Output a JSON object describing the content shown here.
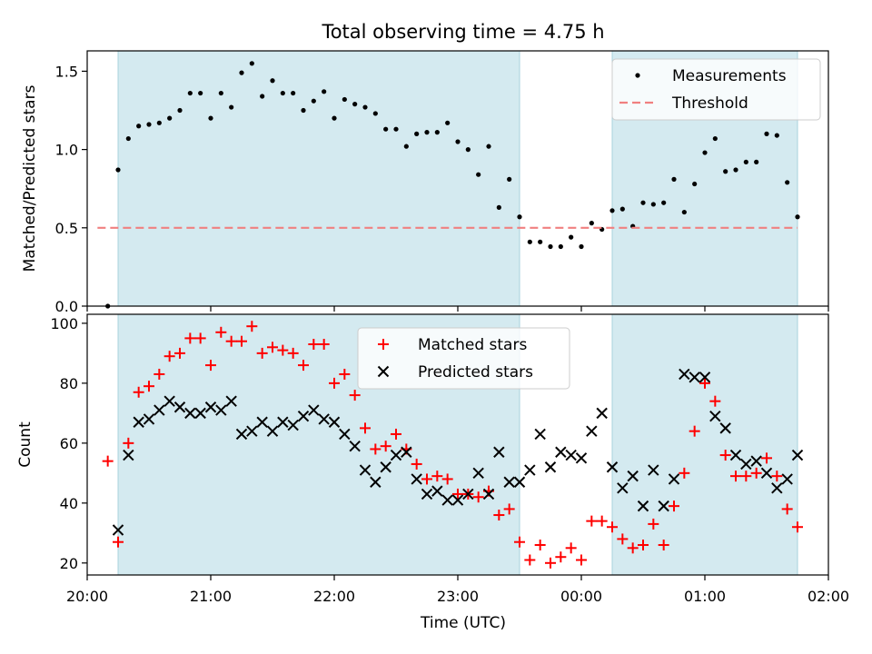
{
  "figure_title": "Total observing time = 4.75 h",
  "x_axis_label": "Time (UTC)",
  "x_tick_labels": [
    "20:00",
    "21:00",
    "22:00",
    "23:00",
    "00:00",
    "01:00",
    "02:00"
  ],
  "chart_data": [
    {
      "type": "scatter",
      "title": "Total observing time = 4.75 h",
      "xlabel": "",
      "ylabel": "Matched/Predicted stars",
      "xlim": [
        "20:00",
        "02:00"
      ],
      "ylim": [
        0,
        1.63
      ],
      "yticks": [
        "0.0",
        "0.5",
        "1.0",
        "1.5"
      ],
      "shaded_intervals": [
        [
          "20:15",
          "23:30"
        ],
        [
          "00:15",
          "01:45"
        ]
      ],
      "shade_color": "#d4eaf0",
      "legend": "top-right",
      "series": [
        {
          "name": "Measurements",
          "marker": "dot",
          "color": "#000000",
          "points": [
            [
              "20:10",
              0.0
            ],
            [
              "20:15",
              0.87
            ],
            [
              "20:20",
              1.07
            ],
            [
              "20:25",
              1.15
            ],
            [
              "20:30",
              1.16
            ],
            [
              "20:35",
              1.17
            ],
            [
              "20:40",
              1.2
            ],
            [
              "20:45",
              1.25
            ],
            [
              "20:50",
              1.36
            ],
            [
              "20:55",
              1.36
            ],
            [
              "21:00",
              1.2
            ],
            [
              "21:05",
              1.36
            ],
            [
              "21:10",
              1.27
            ],
            [
              "21:15",
              1.49
            ],
            [
              "21:20",
              1.55
            ],
            [
              "21:25",
              1.34
            ],
            [
              "21:30",
              1.44
            ],
            [
              "21:35",
              1.36
            ],
            [
              "21:40",
              1.36
            ],
            [
              "21:45",
              1.25
            ],
            [
              "21:50",
              1.31
            ],
            [
              "21:55",
              1.37
            ],
            [
              "22:00",
              1.2
            ],
            [
              "22:05",
              1.32
            ],
            [
              "22:10",
              1.29
            ],
            [
              "22:15",
              1.27
            ],
            [
              "22:20",
              1.23
            ],
            [
              "22:25",
              1.13
            ],
            [
              "22:30",
              1.13
            ],
            [
              "22:35",
              1.02
            ],
            [
              "22:40",
              1.1
            ],
            [
              "22:45",
              1.11
            ],
            [
              "22:50",
              1.11
            ],
            [
              "22:55",
              1.17
            ],
            [
              "23:00",
              1.05
            ],
            [
              "23:05",
              1.0
            ],
            [
              "23:10",
              0.84
            ],
            [
              "23:15",
              1.02
            ],
            [
              "23:20",
              0.63
            ],
            [
              "23:25",
              0.81
            ],
            [
              "23:30",
              0.57
            ],
            [
              "23:35",
              0.41
            ],
            [
              "23:40",
              0.41
            ],
            [
              "23:45",
              0.38
            ],
            [
              "23:50",
              0.38
            ],
            [
              "23:55",
              0.44
            ],
            [
              "00:00",
              0.38
            ],
            [
              "00:05",
              0.53
            ],
            [
              "00:10",
              0.49
            ],
            [
              "00:15",
              0.61
            ],
            [
              "00:20",
              0.62
            ],
            [
              "00:25",
              0.51
            ],
            [
              "00:30",
              0.66
            ],
            [
              "00:35",
              0.65
            ],
            [
              "00:40",
              0.66
            ],
            [
              "00:45",
              0.81
            ],
            [
              "00:50",
              0.6
            ],
            [
              "00:55",
              0.78
            ],
            [
              "01:00",
              0.98
            ],
            [
              "01:05",
              1.07
            ],
            [
              "01:10",
              0.86
            ],
            [
              "01:15",
              0.87
            ],
            [
              "01:20",
              0.92
            ],
            [
              "01:25",
              0.92
            ],
            [
              "01:30",
              1.1
            ],
            [
              "01:35",
              1.09
            ],
            [
              "01:40",
              0.79
            ],
            [
              "01:45",
              0.57
            ]
          ]
        },
        {
          "name": "Threshold",
          "marker": "dashed-line",
          "color": "#f08080",
          "points": [
            [
              "20:05",
              0.5
            ],
            [
              "01:45",
              0.5
            ]
          ]
        }
      ]
    },
    {
      "type": "scatter",
      "title": "",
      "xlabel": "Time (UTC)",
      "ylabel": "Count",
      "xlim": [
        "20:00",
        "02:00"
      ],
      "ylim": [
        16,
        103
      ],
      "yticks": [
        "20",
        "40",
        "60",
        "80",
        "100"
      ],
      "shaded_intervals": [
        [
          "20:15",
          "23:30"
        ],
        [
          "00:15",
          "01:45"
        ]
      ],
      "shade_color": "#d4eaf0",
      "legend": "top-center",
      "series": [
        {
          "name": "Matched stars",
          "marker": "plus",
          "color": "#ff0000",
          "points": [
            [
              "20:10",
              54
            ],
            [
              "20:15",
              27
            ],
            [
              "20:20",
              60
            ],
            [
              "20:25",
              77
            ],
            [
              "20:30",
              79
            ],
            [
              "20:35",
              83
            ],
            [
              "20:40",
              89
            ],
            [
              "20:45",
              90
            ],
            [
              "20:50",
              95
            ],
            [
              "20:55",
              95
            ],
            [
              "21:00",
              86
            ],
            [
              "21:05",
              97
            ],
            [
              "21:10",
              94
            ],
            [
              "21:15",
              94
            ],
            [
              "21:20",
              99
            ],
            [
              "21:25",
              90
            ],
            [
              "21:30",
              92
            ],
            [
              "21:35",
              91
            ],
            [
              "21:40",
              90
            ],
            [
              "21:45",
              86
            ],
            [
              "21:50",
              93
            ],
            [
              "21:55",
              93
            ],
            [
              "22:00",
              80
            ],
            [
              "22:05",
              83
            ],
            [
              "22:10",
              76
            ],
            [
              "22:15",
              65
            ],
            [
              "22:20",
              58
            ],
            [
              "22:25",
              59
            ],
            [
              "22:30",
              63
            ],
            [
              "22:35",
              58
            ],
            [
              "22:40",
              53
            ],
            [
              "22:45",
              48
            ],
            [
              "22:50",
              49
            ],
            [
              "22:55",
              48
            ],
            [
              "23:00",
              43
            ],
            [
              "23:05",
              43
            ],
            [
              "23:10",
              42
            ],
            [
              "23:15",
              44
            ],
            [
              "23:20",
              36
            ],
            [
              "23:25",
              38
            ],
            [
              "23:30",
              27
            ],
            [
              "23:35",
              21
            ],
            [
              "23:40",
              26
            ],
            [
              "23:45",
              20
            ],
            [
              "23:50",
              22
            ],
            [
              "23:55",
              25
            ],
            [
              "00:00",
              21
            ],
            [
              "00:05",
              34
            ],
            [
              "00:10",
              34
            ],
            [
              "00:15",
              32
            ],
            [
              "00:20",
              28
            ],
            [
              "00:25",
              25
            ],
            [
              "00:30",
              26
            ],
            [
              "00:35",
              33
            ],
            [
              "00:40",
              26
            ],
            [
              "00:45",
              39
            ],
            [
              "00:50",
              50
            ],
            [
              "00:55",
              64
            ],
            [
              "01:00",
              80
            ],
            [
              "01:05",
              74
            ],
            [
              "01:10",
              56
            ],
            [
              "01:15",
              49
            ],
            [
              "01:20",
              49
            ],
            [
              "01:25",
              50
            ],
            [
              "01:30",
              55
            ],
            [
              "01:35",
              49
            ],
            [
              "01:40",
              38
            ],
            [
              "01:45",
              32
            ]
          ]
        },
        {
          "name": "Predicted stars",
          "marker": "x",
          "color": "#000000",
          "points": [
            [
              "20:15",
              31
            ],
            [
              "20:20",
              56
            ],
            [
              "20:25",
              67
            ],
            [
              "20:30",
              68
            ],
            [
              "20:35",
              71
            ],
            [
              "20:40",
              74
            ],
            [
              "20:45",
              72
            ],
            [
              "20:50",
              70
            ],
            [
              "20:55",
              70
            ],
            [
              "21:00",
              72
            ],
            [
              "21:05",
              71
            ],
            [
              "21:10",
              74
            ],
            [
              "21:15",
              63
            ],
            [
              "21:20",
              64
            ],
            [
              "21:25",
              67
            ],
            [
              "21:30",
              64
            ],
            [
              "21:35",
              67
            ],
            [
              "21:40",
              66
            ],
            [
              "21:45",
              69
            ],
            [
              "21:50",
              71
            ],
            [
              "21:55",
              68
            ],
            [
              "22:00",
              67
            ],
            [
              "22:05",
              63
            ],
            [
              "22:10",
              59
            ],
            [
              "22:15",
              51
            ],
            [
              "22:20",
              47
            ],
            [
              "22:25",
              52
            ],
            [
              "22:30",
              56
            ],
            [
              "22:35",
              57
            ],
            [
              "22:40",
              48
            ],
            [
              "22:45",
              43
            ],
            [
              "22:50",
              44
            ],
            [
              "22:55",
              41
            ],
            [
              "23:00",
              41
            ],
            [
              "23:05",
              43
            ],
            [
              "23:10",
              50
            ],
            [
              "23:15",
              43
            ],
            [
              "23:20",
              57
            ],
            [
              "23:25",
              47
            ],
            [
              "23:30",
              47
            ],
            [
              "23:35",
              51
            ],
            [
              "23:40",
              63
            ],
            [
              "23:45",
              52
            ],
            [
              "23:50",
              57
            ],
            [
              "23:55",
              56
            ],
            [
              "00:00",
              55
            ],
            [
              "00:05",
              64
            ],
            [
              "00:10",
              70
            ],
            [
              "00:15",
              52
            ],
            [
              "00:20",
              45
            ],
            [
              "00:25",
              49
            ],
            [
              "00:30",
              39
            ],
            [
              "00:35",
              51
            ],
            [
              "00:40",
              39
            ],
            [
              "00:45",
              48
            ],
            [
              "00:50",
              83
            ],
            [
              "00:55",
              82
            ],
            [
              "01:00",
              82
            ],
            [
              "01:05",
              69
            ],
            [
              "01:10",
              65
            ],
            [
              "01:15",
              56
            ],
            [
              "01:20",
              53
            ],
            [
              "01:25",
              54
            ],
            [
              "01:30",
              50
            ],
            [
              "01:35",
              45
            ],
            [
              "01:40",
              48
            ],
            [
              "01:45",
              56
            ]
          ]
        }
      ]
    }
  ]
}
